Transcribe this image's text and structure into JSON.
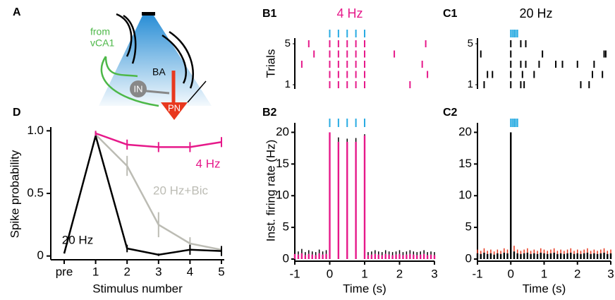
{
  "diagram": {
    "panel": "A",
    "source": [
      "from",
      "vCA1"
    ],
    "region": "BA",
    "interneuron": "IN",
    "principal": "PN"
  },
  "chart_data": [
    {
      "panel": "B1",
      "type": "raster",
      "title": "4 Hz",
      "color": "#e6198a",
      "stimulus_color": "#29abe2",
      "stimuli": [
        0,
        0.25,
        0.5,
        0.75,
        1
      ],
      "ylabel": "Trials",
      "ylim": [
        1,
        5
      ],
      "yticks": [
        1,
        5
      ],
      "xlim": [
        -1,
        3
      ],
      "spikes": [
        [
          0,
          0.25,
          0.5,
          0.75,
          1,
          2.3
        ],
        [
          0,
          0.25,
          0.5,
          0.75,
          1,
          2.8
        ],
        [
          -0.8,
          0,
          0.25,
          0.5,
          0.75,
          1,
          2.65
        ],
        [
          -0.45,
          0,
          0.25,
          0.5,
          0.75,
          1,
          1.85
        ],
        [
          -0.6,
          0,
          0.25,
          0.5,
          0.75,
          1,
          2.75
        ]
      ]
    },
    {
      "panel": "C1",
      "type": "raster",
      "title": "20 Hz",
      "color": "#000000",
      "stimulus_color": "#29abe2",
      "stimuli": [
        0,
        0.05,
        0.1,
        0.15,
        0.2
      ],
      "ylim": [
        1,
        5
      ],
      "yticks": [
        1,
        5
      ],
      "xlim": [
        -1,
        3
      ],
      "spikes": [
        [
          -0.8,
          0,
          0.3,
          0.4,
          2.1,
          2.35
        ],
        [
          -0.7,
          -0.55,
          0,
          0.35,
          0.7,
          2.45,
          2.75
        ],
        [
          0,
          0.3,
          0.45,
          0.85,
          1.35,
          1.55,
          2.0,
          2.5
        ],
        [
          -0.9,
          0,
          0.95,
          2.8,
          2.85
        ],
        [
          0,
          0.3,
          0.45
        ]
      ]
    },
    {
      "panel": "B2",
      "type": "psth",
      "color": "#e6198a",
      "error_color": "#000000",
      "stimulus_color": "#29abe2",
      "stimuli": [
        0,
        0.25,
        0.5,
        0.75,
        1
      ],
      "xlabel": "Time (s)",
      "ylabel": "Inst. firing rate (Hz)",
      "xlim": [
        -1,
        3
      ],
      "xticks": [
        -1,
        0,
        1,
        2,
        3
      ],
      "ylim": [
        0,
        21.5
      ],
      "yticks": [
        0,
        5,
        10,
        15,
        20
      ],
      "x": [
        -1,
        -0.9,
        -0.8,
        -0.7,
        -0.6,
        -0.5,
        -0.4,
        -0.3,
        -0.2,
        -0.1,
        0,
        0.25,
        0.5,
        0.75,
        1,
        1.1,
        1.2,
        1.3,
        1.4,
        1.5,
        1.6,
        1.7,
        1.8,
        1.9,
        2,
        2.1,
        2.2,
        2.3,
        2.4,
        2.5,
        2.6,
        2.7,
        2.8,
        2.9,
        3
      ],
      "values": [
        0.8,
        0.7,
        0.9,
        0.6,
        0.8,
        0.7,
        0.6,
        0.9,
        0.7,
        0.8,
        20,
        18.5,
        18.5,
        18.5,
        19.5,
        0.6,
        0.7,
        0.8,
        0.7,
        0.6,
        0.8,
        0.7,
        0.6,
        0.7,
        0.8,
        0.6,
        0.7,
        0.8,
        0.7,
        0.6,
        0.7,
        0.8,
        0.6,
        0.7,
        0.6
      ],
      "errors": [
        0.6,
        0.5,
        0.7,
        0.5,
        0.6,
        0.5,
        0.5,
        0.6,
        0.5,
        0.6,
        0,
        0.7,
        0.5,
        0.6,
        0.2,
        0.5,
        0.5,
        0.6,
        0.5,
        0.5,
        0.6,
        0.5,
        0.5,
        0.5,
        0.6,
        0.5,
        0.5,
        0.6,
        0.5,
        0.5,
        0.5,
        0.6,
        0.5,
        0.5,
        0.5
      ]
    },
    {
      "panel": "C2",
      "type": "psth",
      "color": "#000000",
      "error_color": "#e8381e",
      "stimulus_color": "#29abe2",
      "stimuli": [
        0,
        0.05,
        0.1,
        0.15,
        0.2
      ],
      "xlabel": "Time (s)",
      "xlim": [
        -1,
        3
      ],
      "xticks": [
        -1,
        0,
        1,
        2,
        3
      ],
      "ylim": [
        0,
        21.5
      ],
      "yticks": [
        0,
        5,
        10,
        15,
        20
      ],
      "x": [
        -1,
        -0.9,
        -0.8,
        -0.7,
        -0.6,
        -0.5,
        -0.4,
        -0.3,
        -0.2,
        -0.1,
        0,
        0.1,
        0.2,
        0.3,
        0.4,
        0.5,
        0.6,
        0.7,
        0.8,
        0.9,
        1,
        1.1,
        1.2,
        1.3,
        1.4,
        1.5,
        1.6,
        1.7,
        1.8,
        1.9,
        2,
        2.1,
        2.2,
        2.3,
        2.4,
        2.5,
        2.6,
        2.7,
        2.8,
        2.9,
        3
      ],
      "values": [
        0.9,
        0.8,
        1.0,
        0.8,
        0.9,
        0.7,
        0.9,
        0.8,
        1.0,
        0.9,
        20,
        1.2,
        0.9,
        0.8,
        0.9,
        1.0,
        0.8,
        0.9,
        0.8,
        1.0,
        0.9,
        0.8,
        0.9,
        1.0,
        0.8,
        0.9,
        0.8,
        0.9,
        1.0,
        0.8,
        0.9,
        0.8,
        0.9,
        1.0,
        0.8,
        0.9,
        0.8,
        0.9,
        1.0,
        0.8,
        0.9
      ],
      "errors": [
        0.6,
        0.5,
        0.7,
        0.5,
        0.6,
        0.5,
        0.6,
        0.5,
        0.7,
        0.6,
        0,
        0.9,
        0.6,
        0.5,
        0.6,
        0.7,
        0.5,
        0.6,
        0.5,
        0.7,
        0.6,
        0.5,
        0.6,
        0.7,
        0.5,
        0.6,
        0.5,
        0.6,
        0.7,
        0.5,
        0.6,
        0.5,
        0.6,
        0.7,
        0.5,
        0.6,
        0.5,
        0.6,
        0.7,
        0.5,
        0.6
      ]
    },
    {
      "panel": "D",
      "type": "line",
      "xlabel": "Stimulus number",
      "ylabel": "Spike probability",
      "categories": [
        "pre",
        "1",
        "2",
        "3",
        "4",
        "5"
      ],
      "ylim": [
        -0.03,
        1.03
      ],
      "yticks": [
        0,
        0.5,
        {
          "value": 1,
          "label": "1.0"
        }
      ],
      "series": [
        {
          "name": "20 Hz+Bic",
          "color": "#bcbcb4",
          "values": [
            null,
            0.97,
            0.72,
            0.25,
            0.1,
            0.05
          ],
          "errors": [
            null,
            0.03,
            0.08,
            0.1,
            0.05,
            0.03
          ]
        },
        {
          "name": "20 Hz",
          "color": "#000000",
          "values": [
            0.02,
            0.96,
            0.06,
            0.01,
            0.05,
            0.04
          ],
          "errors": [
            null,
            0.03,
            0.03,
            0.01,
            0.04,
            0.04
          ]
        },
        {
          "name": "4 Hz",
          "color": "#e6198a",
          "values": [
            null,
            0.98,
            0.89,
            0.87,
            0.87,
            0.91
          ],
          "errors": [
            null,
            0.02,
            0.04,
            0.04,
            0.04,
            0.04
          ]
        }
      ]
    }
  ]
}
